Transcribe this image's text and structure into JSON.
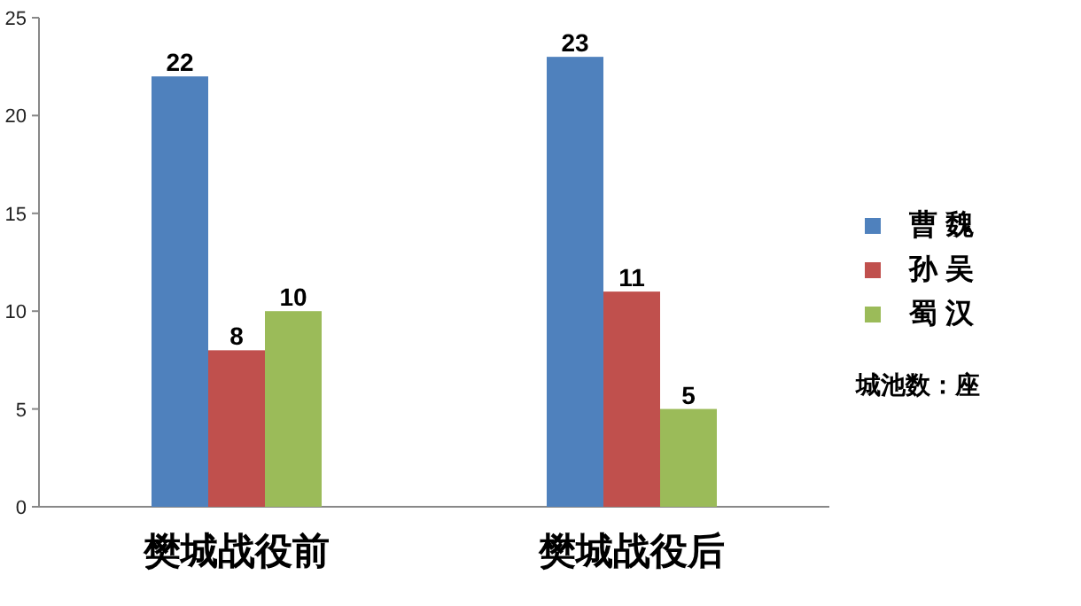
{
  "chart_data": {
    "type": "bar",
    "categories": [
      "樊城战役前",
      "樊城战役后"
    ],
    "series": [
      {
        "name": "曹 魏",
        "color": "#4f81bd",
        "values": [
          22,
          23
        ]
      },
      {
        "name": "孙 吴",
        "color": "#c0504d",
        "values": [
          8,
          11
        ]
      },
      {
        "name": "蜀 汉",
        "color": "#9bbb59",
        "values": [
          10,
          5
        ]
      }
    ],
    "ylim": [
      0,
      25
    ],
    "yticks": [
      0,
      5,
      10,
      15,
      20,
      25
    ],
    "data_labels": true,
    "legend": "right",
    "grid": false,
    "annotations": [
      "城池数：座"
    ]
  }
}
